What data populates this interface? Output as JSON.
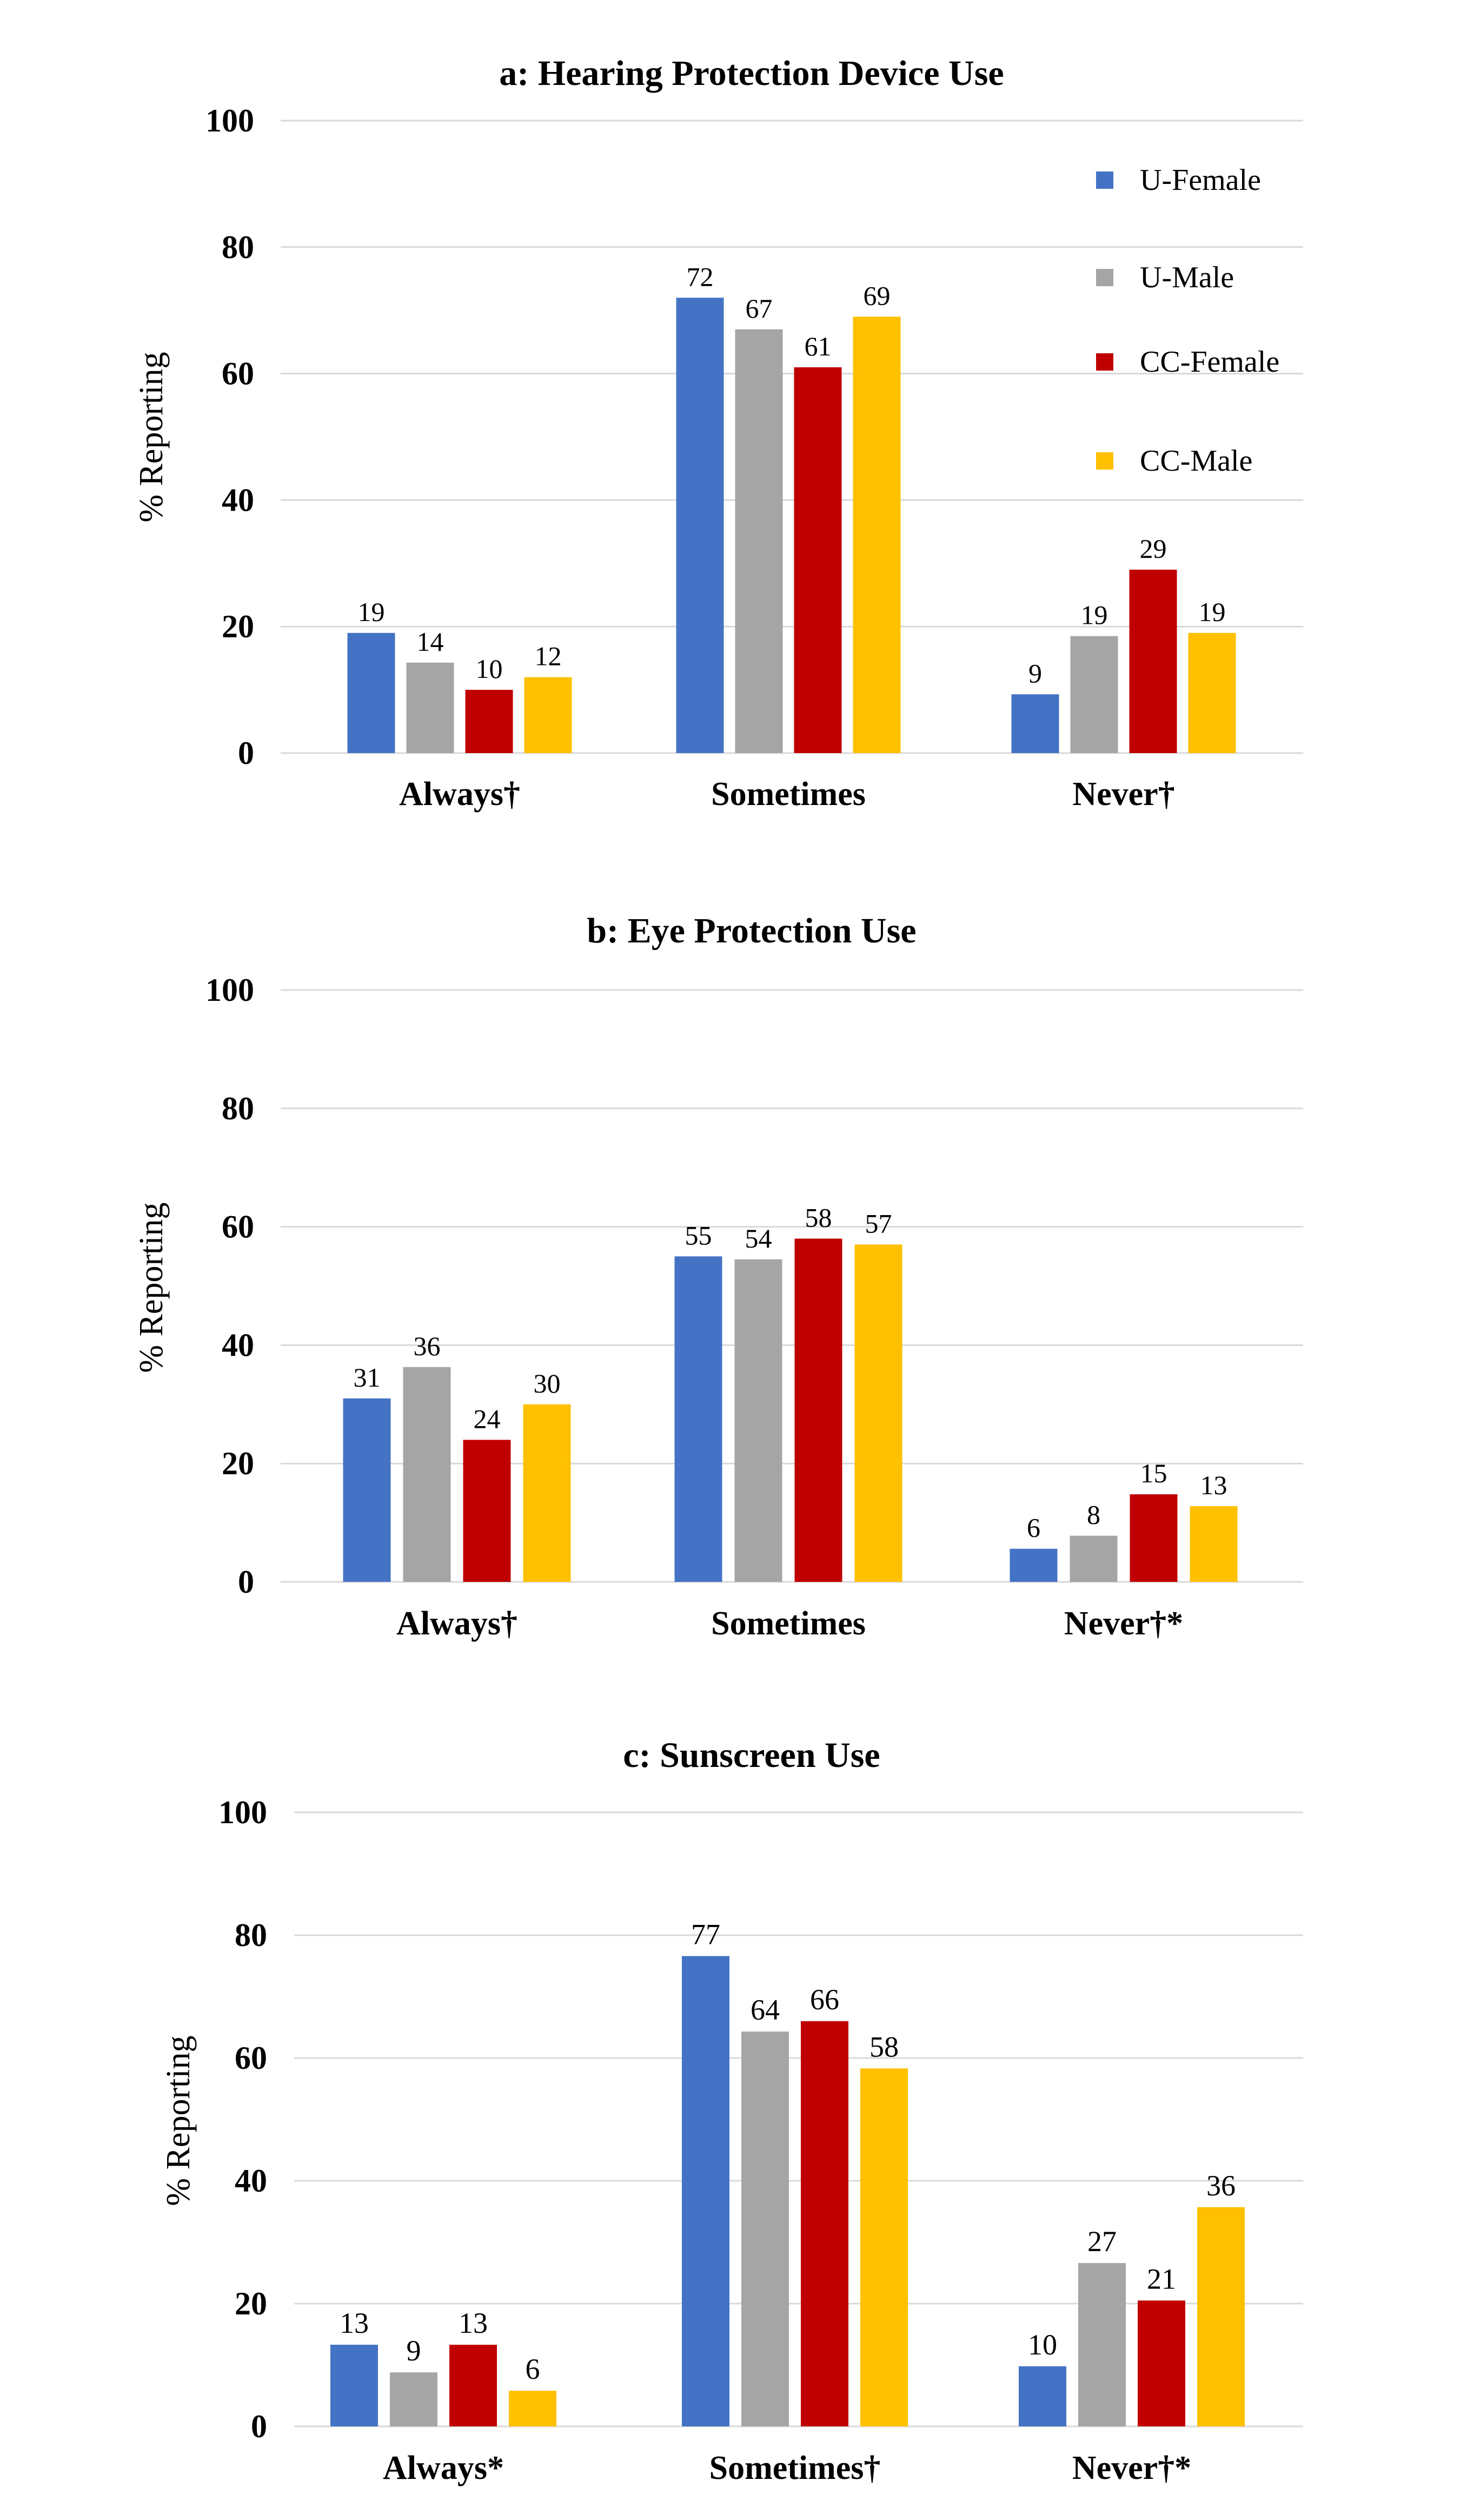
{
  "colors": {
    "U-Female": "#4472c4",
    "U-Male": "#a5a5a5",
    "CC-Female": "#c00000",
    "CC-Male": "#ffc000",
    "grid": "#d9d9d9",
    "text": "#000000"
  },
  "chart_data": [
    {
      "type": "bar",
      "title": "a: Hearing Protection Device Use",
      "ylabel": "% Reporting",
      "xlabel": "",
      "ylim": [
        0,
        100
      ],
      "yticks": [
        0,
        20,
        40,
        60,
        80,
        100
      ],
      "grid": true,
      "legend": "top-right",
      "categories": [
        "Always†",
        "Sometimes",
        "Never†"
      ],
      "series": [
        {
          "name": "U-Female",
          "values": [
            19,
            72,
            9
          ]
        },
        {
          "name": "U-Male",
          "values": [
            14,
            67,
            19
          ]
        },
        {
          "name": "CC-Female",
          "values": [
            10,
            61,
            29
          ]
        },
        {
          "name": "CC-Male",
          "values": [
            12,
            69,
            19
          ]
        }
      ],
      "bar_heights": [
        [
          19,
          72,
          9.3
        ],
        [
          14.3,
          67,
          18.5
        ],
        [
          10,
          61,
          29
        ],
        [
          12,
          69,
          19
        ]
      ]
    },
    {
      "type": "bar",
      "title": "b: Eye Protection Use",
      "ylabel": "% Reporting",
      "xlabel": "",
      "ylim": [
        0,
        100
      ],
      "yticks": [
        0,
        20,
        40,
        60,
        80,
        100
      ],
      "grid": true,
      "categories": [
        "Always†",
        "Sometimes",
        "Never†*"
      ],
      "series": [
        {
          "name": "U-Female",
          "values": [
            31,
            55,
            6
          ]
        },
        {
          "name": "U-Male",
          "values": [
            36,
            54,
            8
          ]
        },
        {
          "name": "CC-Female",
          "values": [
            24,
            58,
            15
          ]
        },
        {
          "name": "CC-Male",
          "values": [
            30,
            57,
            13
          ]
        }
      ],
      "bar_heights": [
        [
          31,
          55,
          5.6
        ],
        [
          36.3,
          54.5,
          7.8
        ],
        [
          24,
          58,
          14.8
        ],
        [
          30,
          57,
          12.8
        ]
      ]
    },
    {
      "type": "bar",
      "title": "c: Sunscreen Use",
      "ylabel": "% Reporting",
      "xlabel": "",
      "ylim": [
        0,
        100
      ],
      "yticks": [
        0,
        20,
        40,
        60,
        80,
        100
      ],
      "grid": true,
      "categories": [
        "Always*",
        "Sometimes†",
        "Never†*"
      ],
      "series": [
        {
          "name": "U-Female",
          "values": [
            13,
            77,
            10
          ]
        },
        {
          "name": "U-Male",
          "values": [
            9,
            64,
            27
          ]
        },
        {
          "name": "CC-Female",
          "values": [
            13,
            66,
            21
          ]
        },
        {
          "name": "CC-Male",
          "values": [
            6,
            58,
            36
          ]
        }
      ],
      "bar_heights": [
        [
          13.3,
          76.6,
          9.8
        ],
        [
          8.8,
          64.3,
          26.6
        ],
        [
          13.3,
          66,
          20.5
        ],
        [
          5.8,
          58.3,
          35.7
        ]
      ]
    }
  ]
}
